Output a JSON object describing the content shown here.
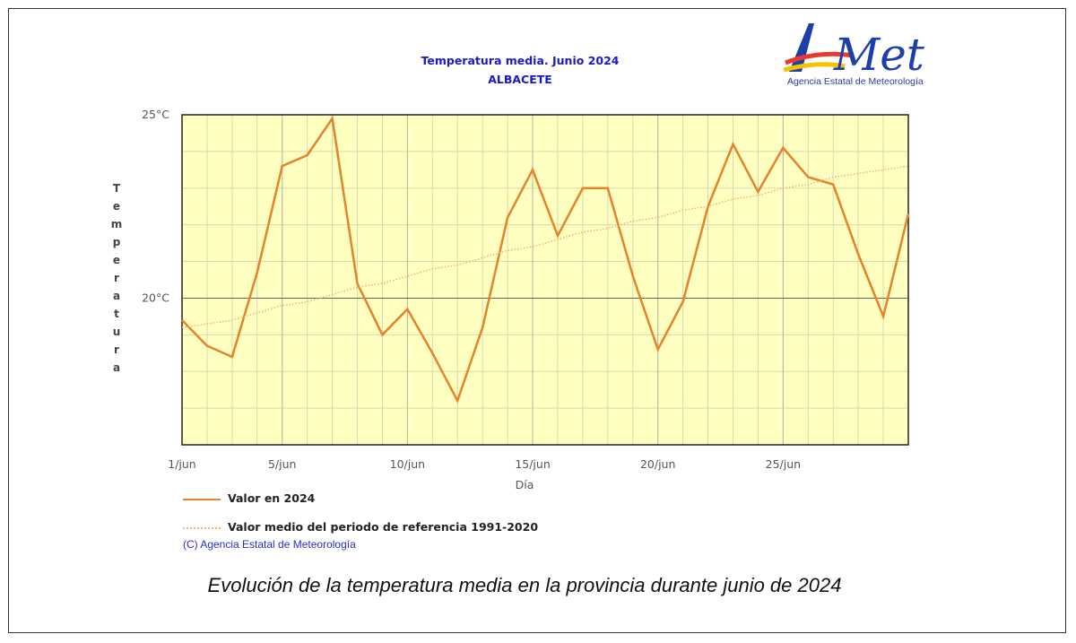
{
  "header": {
    "title": "Temperatura media. Junio 2024",
    "subtitle": "ALBACETE"
  },
  "logo": {
    "text": "AEmet",
    "tagline": "Agencia Estatal de Meteorología"
  },
  "chart_data": {
    "type": "line",
    "title": "Temperatura media. Junio 2024",
    "subtitle": "ALBACETE",
    "xlabel": "Día",
    "ylabel": "Temperatura",
    "x": [
      1,
      2,
      3,
      4,
      5,
      6,
      7,
      8,
      9,
      10,
      11,
      12,
      13,
      14,
      15,
      16,
      17,
      18,
      19,
      20,
      21,
      22,
      23,
      24,
      25,
      26,
      27,
      28,
      29,
      30
    ],
    "xlim": [
      1,
      30
    ],
    "ylim": [
      16,
      25
    ],
    "x_ticks": [
      {
        "x": 1,
        "label": "1/jun"
      },
      {
        "x": 5,
        "label": "5/jun"
      },
      {
        "x": 10,
        "label": "10/jun"
      },
      {
        "x": 15,
        "label": "15/jun"
      },
      {
        "x": 20,
        "label": "20/jun"
      },
      {
        "x": 25,
        "label": "25/jun"
      }
    ],
    "y_ticks": [
      {
        "y": 20,
        "label": "20°C"
      },
      {
        "y": 25,
        "label": "25°C"
      }
    ],
    "grid": true,
    "background": "#ffffc0",
    "series": [
      {
        "name": "Valor en 2024",
        "color": "#e8822a",
        "style": "solid",
        "values": [
          19.4,
          18.7,
          18.4,
          20.7,
          23.6,
          23.9,
          24.9,
          20.4,
          19.0,
          19.7,
          18.5,
          17.2,
          19.2,
          22.2,
          23.5,
          21.7,
          23.0,
          23.0,
          20.6,
          18.6,
          19.9,
          22.5,
          24.2,
          22.9,
          24.1,
          23.3,
          23.1,
          21.2,
          19.5,
          22.3
        ]
      },
      {
        "name": "Valor medio del periodo de referencia 1991-2020",
        "color": "#f0b47a",
        "style": "dotted",
        "values": [
          19.2,
          19.3,
          19.4,
          19.6,
          19.8,
          19.9,
          20.1,
          20.3,
          20.4,
          20.6,
          20.8,
          20.9,
          21.1,
          21.3,
          21.4,
          21.6,
          21.8,
          21.9,
          22.1,
          22.2,
          22.4,
          22.5,
          22.7,
          22.8,
          23.0,
          23.1,
          23.3,
          23.4,
          23.5,
          23.6
        ]
      }
    ]
  },
  "legend": {
    "items": [
      "Valor en 2024",
      "Valor medio del periodo de referencia 1991-2020"
    ]
  },
  "copyright": "(C) Agencia Estatal de Meteorología",
  "caption": "Evolución de la temperatura media en la provincia durante junio de 2024"
}
